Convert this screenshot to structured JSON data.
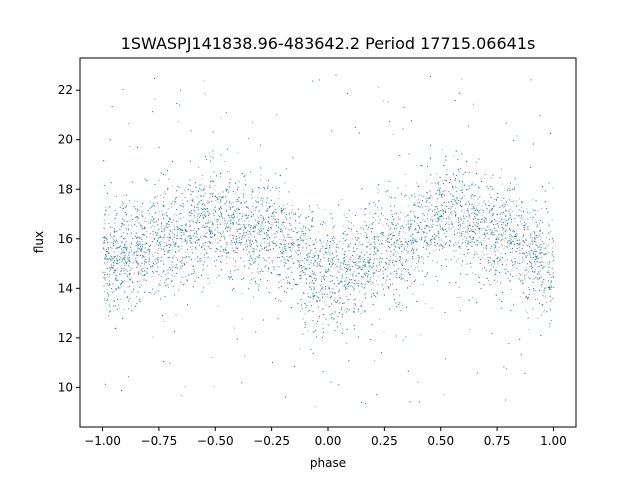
{
  "chart_data": {
    "type": "scatter",
    "title": "1SWASPJ141838.96-483642.2 Period 17715.06641s",
    "xlabel": "phase",
    "ylabel": "flux",
    "xlim": [
      -1.1,
      1.1
    ],
    "ylim": [
      8.4,
      23.3
    ],
    "x_ticks": [
      -1.0,
      -0.75,
      -0.5,
      -0.25,
      0.0,
      0.25,
      0.5,
      0.75,
      1.0
    ],
    "x_tick_labels": [
      "−1.00",
      "−0.75",
      "−0.50",
      "−0.25",
      "0.00",
      "0.25",
      "0.50",
      "0.75",
      "1.00"
    ],
    "y_ticks": [
      10,
      12,
      14,
      16,
      18,
      20,
      22
    ],
    "y_tick_labels": [
      "10",
      "12",
      "14",
      "16",
      "18",
      "20",
      "22"
    ],
    "grid": false,
    "marker_color": "#1f77b4",
    "series": [
      {
        "x_range": [
          -1.0,
          1.0
        ],
        "trend": [
          {
            "x": -1.0,
            "y": 15.1
          },
          {
            "x": -0.75,
            "y": 15.9
          },
          {
            "x": -0.5,
            "y": 16.7
          },
          {
            "x": -0.25,
            "y": 16.1
          },
          {
            "x": 0.0,
            "y": 14.5
          },
          {
            "x": 0.05,
            "y": 14.4
          },
          {
            "x": 0.25,
            "y": 15.7
          },
          {
            "x": 0.5,
            "y": 16.8
          },
          {
            "x": 0.55,
            "y": 16.8
          },
          {
            "x": 0.75,
            "y": 16.2
          },
          {
            "x": 1.0,
            "y": 15.0
          }
        ],
        "core_spread": 1.1,
        "outlier_range": [
          9.2,
          22.8
        ]
      }
    ]
  }
}
